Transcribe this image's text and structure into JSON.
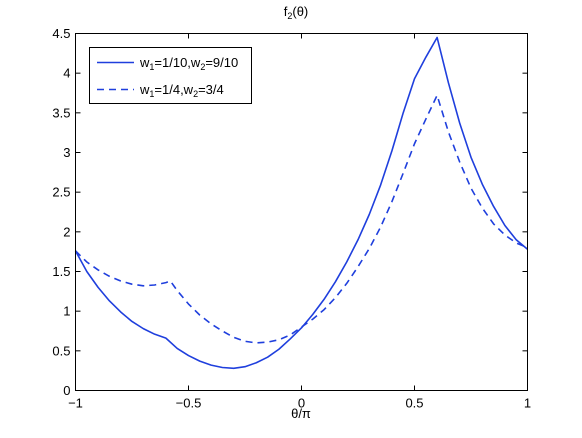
{
  "chart_data": {
    "type": "line",
    "title": {
      "base": "f",
      "sub": "2",
      "rest": "(θ)"
    },
    "xlabel": "θ/π",
    "ylabel": "",
    "xlim": [
      -1,
      1
    ],
    "ylim": [
      0,
      4.5
    ],
    "xticks": [
      -1,
      -0.5,
      0,
      0.5,
      1
    ],
    "xtick_labels": [
      "−1",
      "−0.5",
      "0",
      "0.5",
      "1"
    ],
    "yticks": [
      0,
      0.5,
      1,
      1.5,
      2,
      2.5,
      3,
      3.5,
      4,
      4.5
    ],
    "ytick_labels": [
      "0",
      "0.5",
      "1",
      "1.5",
      "2",
      "2.5",
      "3",
      "3.5",
      "4",
      "4.5"
    ],
    "grid": false,
    "legend_position": "top-left",
    "series": [
      {
        "name": "w1=1/10,w2=9/10",
        "legend": {
          "w1": "w",
          "s1": "1",
          "v1": "=1/10,w",
          "s2": "2",
          "v2": "=9/10"
        },
        "style": "solid",
        "color": "#1f3fdd",
        "x": [
          -1,
          -0.95,
          -0.9,
          -0.85,
          -0.8,
          -0.75,
          -0.7,
          -0.65,
          -0.6,
          -0.55,
          -0.5,
          -0.45,
          -0.4,
          -0.35,
          -0.3,
          -0.25,
          -0.2,
          -0.15,
          -0.1,
          -0.05,
          0,
          0.05,
          0.1,
          0.15,
          0.2,
          0.25,
          0.3,
          0.35,
          0.4,
          0.45,
          0.5,
          0.55,
          0.6,
          0.65,
          0.7,
          0.75,
          0.8,
          0.85,
          0.9,
          0.95,
          1
        ],
        "y": [
          1.76,
          1.5,
          1.3,
          1.13,
          0.99,
          0.87,
          0.78,
          0.71,
          0.66,
          0.53,
          0.44,
          0.37,
          0.32,
          0.29,
          0.28,
          0.3,
          0.35,
          0.42,
          0.52,
          0.65,
          0.79,
          0.96,
          1.15,
          1.37,
          1.62,
          1.9,
          2.22,
          2.59,
          3.02,
          3.5,
          3.93,
          4.2,
          4.45,
          3.88,
          3.37,
          2.94,
          2.6,
          2.32,
          2.08,
          1.9,
          1.78
        ]
      },
      {
        "name": "w1=1/4,w2=3/4",
        "legend": {
          "w1": "w",
          "s1": "1",
          "v1": "=1/4,w",
          "s2": "2",
          "v2": "=3/4"
        },
        "style": "dashed",
        "color": "#1f3fdd",
        "x": [
          -1,
          -0.95,
          -0.9,
          -0.85,
          -0.8,
          -0.75,
          -0.7,
          -0.65,
          -0.6,
          -0.58,
          -0.55,
          -0.5,
          -0.45,
          -0.4,
          -0.35,
          -0.3,
          -0.25,
          -0.2,
          -0.15,
          -0.1,
          -0.05,
          0,
          0.05,
          0.1,
          0.15,
          0.2,
          0.25,
          0.3,
          0.35,
          0.4,
          0.45,
          0.5,
          0.55,
          0.6,
          0.65,
          0.7,
          0.75,
          0.8,
          0.85,
          0.9,
          0.95,
          1
        ],
        "y": [
          1.76,
          1.62,
          1.52,
          1.44,
          1.38,
          1.34,
          1.32,
          1.33,
          1.36,
          1.38,
          1.26,
          1.09,
          0.95,
          0.84,
          0.75,
          0.67,
          0.62,
          0.6,
          0.61,
          0.64,
          0.7,
          0.8,
          0.9,
          1.02,
          1.17,
          1.35,
          1.56,
          1.79,
          2.06,
          2.38,
          2.74,
          3.11,
          3.42,
          3.72,
          3.26,
          2.88,
          2.55,
          2.3,
          2.1,
          1.96,
          1.86,
          1.8
        ]
      }
    ]
  }
}
